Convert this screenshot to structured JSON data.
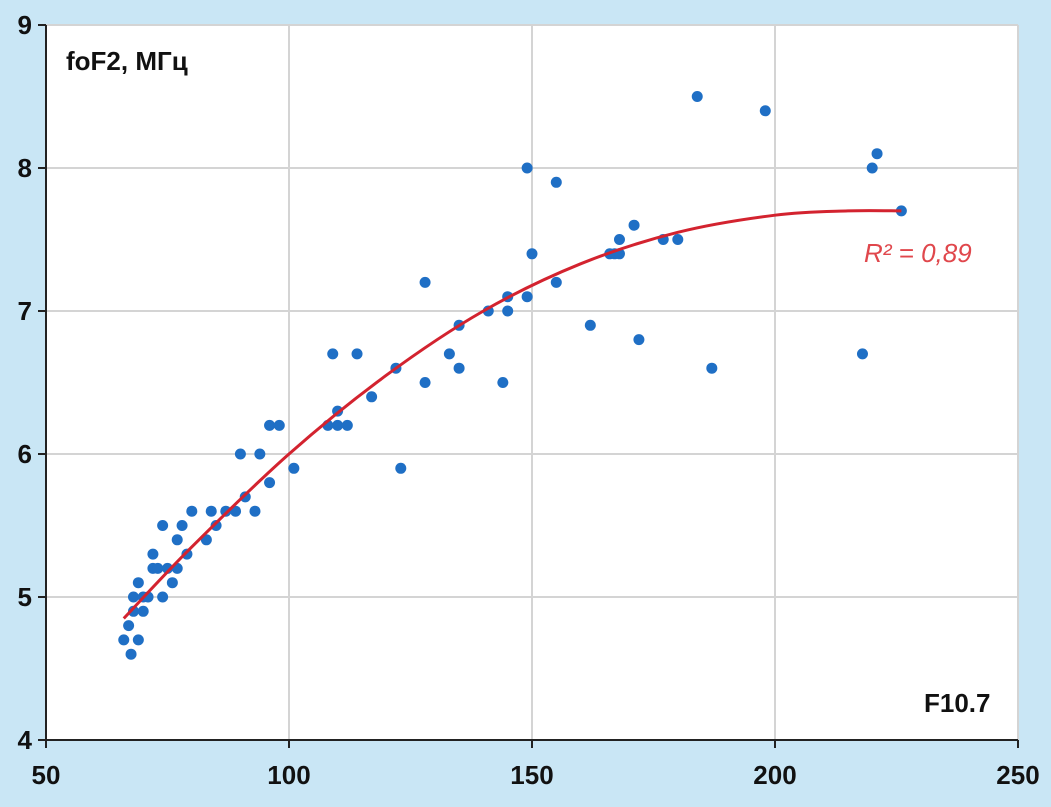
{
  "chart_data": {
    "type": "scatter",
    "ylabel": "foF2, МГц",
    "xlabel": "F10.7",
    "xlim": [
      50,
      250
    ],
    "ylim": [
      4,
      9
    ],
    "x_ticks": [
      "50",
      "100",
      "150",
      "200",
      "250"
    ],
    "y_ticks": [
      "4",
      "5",
      "6",
      "7",
      "8",
      "9"
    ],
    "grid": true,
    "point_color": "#1f6fc5",
    "trend_color": "#d3232f",
    "background_color": "#c9e6f5",
    "series": [
      {
        "values": [
          [
            66,
            4.7
          ],
          [
            67,
            4.8
          ],
          [
            67.5,
            4.6
          ],
          [
            68,
            4.9
          ],
          [
            68,
            5.0
          ],
          [
            69,
            5.1
          ],
          [
            69,
            4.7
          ],
          [
            70,
            4.9
          ],
          [
            70,
            5.0
          ],
          [
            71,
            5.0
          ],
          [
            72,
            5.2
          ],
          [
            72,
            5.3
          ],
          [
            73,
            5.2
          ],
          [
            74,
            5.0
          ],
          [
            74,
            5.5
          ],
          [
            75,
            5.2
          ],
          [
            76,
            5.1
          ],
          [
            77,
            5.4
          ],
          [
            77,
            5.2
          ],
          [
            78,
            5.5
          ],
          [
            79,
            5.3
          ],
          [
            80,
            5.6
          ],
          [
            83,
            5.4
          ],
          [
            84,
            5.6
          ],
          [
            85,
            5.5
          ],
          [
            87,
            5.6
          ],
          [
            89,
            5.6
          ],
          [
            90,
            6.0
          ],
          [
            91,
            5.7
          ],
          [
            93,
            5.6
          ],
          [
            94,
            6.0
          ],
          [
            96,
            6.2
          ],
          [
            96,
            5.8
          ],
          [
            98,
            6.2
          ],
          [
            101,
            5.9
          ],
          [
            108,
            6.2
          ],
          [
            109,
            6.7
          ],
          [
            110,
            6.2
          ],
          [
            110,
            6.3
          ],
          [
            112,
            6.2
          ],
          [
            114,
            6.7
          ],
          [
            117,
            6.4
          ],
          [
            122,
            6.6
          ],
          [
            123,
            5.9
          ],
          [
            128,
            7.2
          ],
          [
            128,
            6.5
          ],
          [
            133,
            6.7
          ],
          [
            135,
            6.6
          ],
          [
            135,
            6.9
          ],
          [
            141,
            7.0
          ],
          [
            144,
            6.5
          ],
          [
            145,
            7.1
          ],
          [
            145,
            7.0
          ],
          [
            149,
            8.0
          ],
          [
            149,
            7.1
          ],
          [
            150,
            7.4
          ],
          [
            155,
            7.9
          ],
          [
            155,
            7.2
          ],
          [
            162,
            6.9
          ],
          [
            166,
            7.4
          ],
          [
            167,
            7.4
          ],
          [
            168,
            7.5
          ],
          [
            168,
            7.4
          ],
          [
            171,
            7.6
          ],
          [
            172,
            6.8
          ],
          [
            177,
            7.5
          ],
          [
            180,
            7.5
          ],
          [
            184,
            8.5
          ],
          [
            187,
            6.6
          ],
          [
            198,
            8.4
          ],
          [
            218,
            6.7
          ],
          [
            220,
            8.0
          ],
          [
            221,
            8.1
          ],
          [
            226,
            7.7
          ]
        ]
      }
    ],
    "trendline": {
      "type": "polynomial",
      "x_range": [
        66,
        226
      ],
      "annotation": "R² = 0,89",
      "points": [
        [
          66,
          4.85
        ],
        [
          80,
          5.35
        ],
        [
          100,
          6.0
        ],
        [
          120,
          6.55
        ],
        [
          140,
          7.0
        ],
        [
          160,
          7.33
        ],
        [
          180,
          7.55
        ],
        [
          200,
          7.67
        ],
        [
          215,
          7.7
        ],
        [
          226,
          7.7
        ]
      ]
    }
  }
}
